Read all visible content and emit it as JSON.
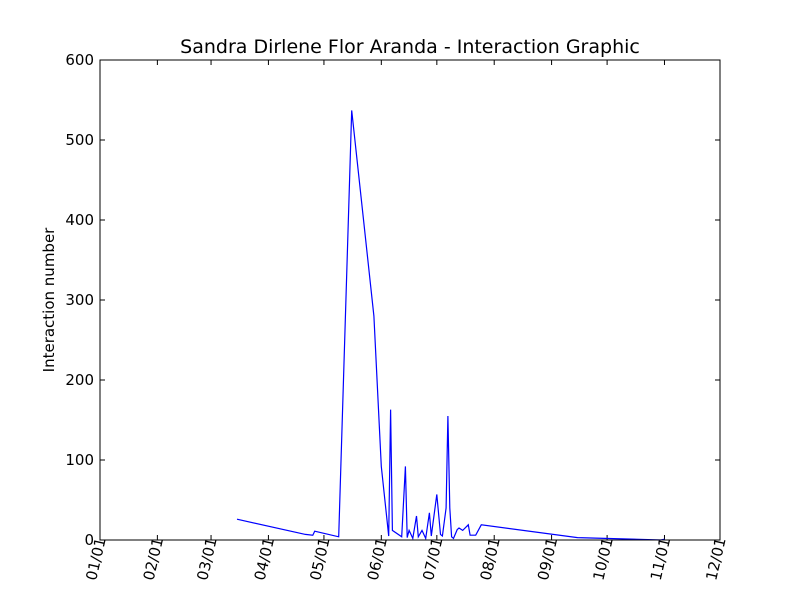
{
  "chart_data": {
    "type": "line",
    "title": "Sandra Dirlene Flor Aranda - Interaction Graphic",
    "xlabel": "",
    "ylabel": "Interaction number",
    "x_axis": "date",
    "xlim": [
      "01/01",
      "12/01"
    ],
    "ylim": [
      0,
      600
    ],
    "x_ticks": [
      "01/01",
      "02/01",
      "03/01",
      "04/01",
      "05/01",
      "06/01",
      "07/01",
      "08/01",
      "09/01",
      "10/01",
      "11/01",
      "12/01"
    ],
    "y_ticks": [
      "0",
      "100",
      "200",
      "300",
      "400",
      "500",
      "600"
    ],
    "grid": false,
    "legend": "none",
    "series": [
      {
        "color": "#0000ff",
        "points": [
          {
            "x": "03/15",
            "y": 26
          },
          {
            "x": "04/21",
            "y": 7
          },
          {
            "x": "04/25",
            "y": 6
          },
          {
            "x": "04/26",
            "y": 11
          },
          {
            "x": "05/09",
            "y": 4
          },
          {
            "x": "05/16",
            "y": 537
          },
          {
            "x": "05/28",
            "y": 280
          },
          {
            "x": "06/01",
            "y": 92
          },
          {
            "x": "06/05",
            "y": 5
          },
          {
            "x": "06/06",
            "y": 163
          },
          {
            "x": "06/07",
            "y": 12
          },
          {
            "x": "06/12",
            "y": 4
          },
          {
            "x": "06/14",
            "y": 92
          },
          {
            "x": "06/15",
            "y": 3
          },
          {
            "x": "06/16",
            "y": 12
          },
          {
            "x": "06/18",
            "y": 2
          },
          {
            "x": "06/20",
            "y": 30
          },
          {
            "x": "06/21",
            "y": 4
          },
          {
            "x": "06/23",
            "y": 12
          },
          {
            "x": "06/25",
            "y": 2
          },
          {
            "x": "06/27",
            "y": 34
          },
          {
            "x": "06/28",
            "y": 5
          },
          {
            "x": "07/01",
            "y": 57
          },
          {
            "x": "07/03",
            "y": 7
          },
          {
            "x": "07/04",
            "y": 5
          },
          {
            "x": "07/06",
            "y": 40
          },
          {
            "x": "07/07",
            "y": 155
          },
          {
            "x": "07/08",
            "y": 40
          },
          {
            "x": "07/09",
            "y": 4
          },
          {
            "x": "07/10",
            "y": 2
          },
          {
            "x": "07/12",
            "y": 13
          },
          {
            "x": "07/13",
            "y": 15
          },
          {
            "x": "07/15",
            "y": 12
          },
          {
            "x": "07/18",
            "y": 19
          },
          {
            "x": "07/19",
            "y": 6
          },
          {
            "x": "07/22",
            "y": 6
          },
          {
            "x": "07/25",
            "y": 19
          },
          {
            "x": "09/15",
            "y": 3
          },
          {
            "x": "10/30",
            "y": 0
          },
          {
            "x": "11/01",
            "y": 1
          }
        ]
      }
    ]
  }
}
